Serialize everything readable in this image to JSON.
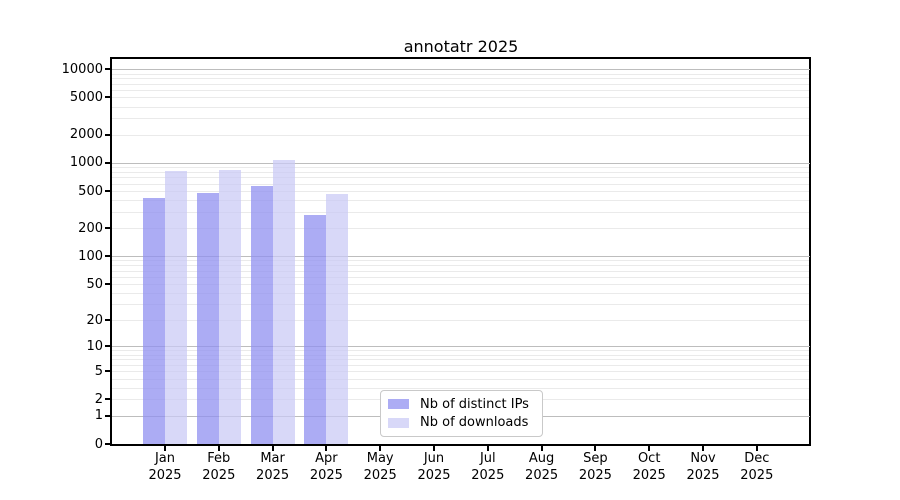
{
  "chart_data": {
    "type": "bar",
    "title": "annotatr 2025",
    "categories": [
      "Jan",
      "Feb",
      "Mar",
      "Apr",
      "May",
      "Jun",
      "Jul",
      "Aug",
      "Sep",
      "Oct",
      "Nov",
      "Dec"
    ],
    "category_sub_label": "2025",
    "series": [
      {
        "name": "Nb of distinct IPs",
        "color": "#9090f0",
        "opacity": 0.75,
        "values": [
          420,
          480,
          565,
          280,
          null,
          null,
          null,
          null,
          null,
          null,
          null,
          null
        ]
      },
      {
        "name": "Nb of downloads",
        "color": "#c9c9f5",
        "opacity": 0.72,
        "values": [
          825,
          840,
          1070,
          460,
          null,
          null,
          null,
          null,
          null,
          null,
          null,
          null
        ]
      }
    ],
    "yscale": "log10(1+x)",
    "yticks": [
      0,
      1,
      2,
      5,
      10,
      20,
      50,
      100,
      200,
      500,
      1000,
      2000,
      5000,
      10000
    ],
    "ylim": [
      0,
      13000
    ],
    "grid": {
      "major_values": [
        1,
        10,
        100,
        1000,
        10000
      ],
      "minor_mantissas": [
        2,
        3,
        4,
        5,
        6,
        7,
        8,
        9
      ],
      "minor_decades": [
        1,
        10,
        100,
        1000
      ],
      "major_color": "#bdbdbd",
      "minor_color": "#eaeaea"
    },
    "legend_position": "bottom-center-inside"
  }
}
